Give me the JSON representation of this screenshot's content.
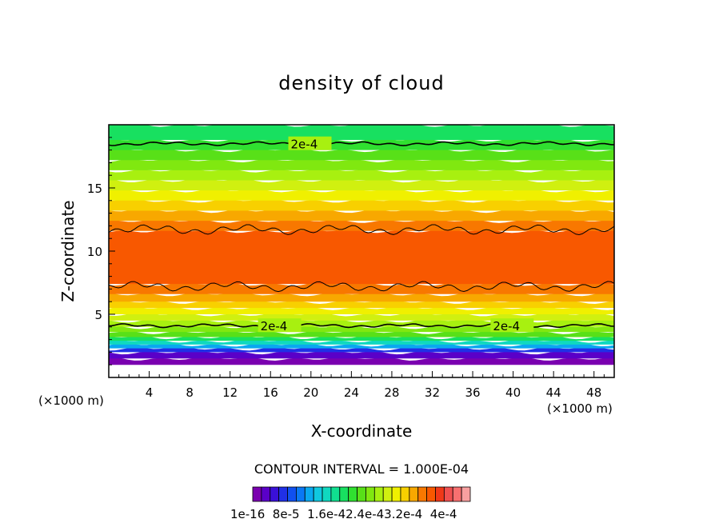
{
  "chart_data": {
    "type": "heatmap",
    "title": "density of cloud",
    "xlabel": "X-coordinate",
    "ylabel": "Z-coordinate",
    "x_unit_left": "(×1000 m)",
    "x_unit_right": "(×1000 m)",
    "xlim": [
      0,
      50
    ],
    "ylim": [
      0,
      20
    ],
    "x_ticks": [
      4,
      8,
      12,
      16,
      20,
      24,
      28,
      32,
      36,
      40,
      44,
      48
    ],
    "y_ticks": [
      5,
      10,
      15
    ],
    "contour_label": "2e-4",
    "contour_interval_text": "CONTOUR INTERVAL = 1.000E-04",
    "colorbar_labels": [
      "1e-16",
      "8e-5",
      "1.6e-4",
      "2.4e-4",
      "3.2e-4",
      "4e-4"
    ],
    "colorbar_label_text": "1e-16  8e-5  1.6e-42.4e-43.2e-4  4e-4",
    "colorbar_colors": [
      "#7a00b0",
      "#5a00c8",
      "#3a10d8",
      "#2030e6",
      "#1050f0",
      "#0a78f5",
      "#0aa8f0",
      "#10c8e0",
      "#10d8c0",
      "#10e090",
      "#18e060",
      "#30e030",
      "#58e018",
      "#80e810",
      "#a8f010",
      "#d0f010",
      "#f0f000",
      "#f8d000",
      "#f8a800",
      "#f87800",
      "#f85800",
      "#f03818",
      "#f05050",
      "#f87070",
      "#f8a0a0"
    ],
    "bands": [
      {
        "z0": 0.0,
        "z1": 1.0,
        "level": -1
      },
      {
        "z0": 1.0,
        "z1": 1.5,
        "level": 0
      },
      {
        "z0": 1.5,
        "z1": 2.0,
        "level": 1
      },
      {
        "z0": 2.0,
        "z1": 2.3,
        "level": 3
      },
      {
        "z0": 2.3,
        "z1": 2.6,
        "level": 6
      },
      {
        "z0": 2.6,
        "z1": 2.9,
        "level": 8
      },
      {
        "z0": 2.9,
        "z1": 3.2,
        "level": 10
      },
      {
        "z0": 3.2,
        "z1": 3.6,
        "level": 12
      },
      {
        "z0": 3.6,
        "z1": 4.0,
        "level": 13
      },
      {
        "z0": 4.0,
        "z1": 4.5,
        "level": 14
      },
      {
        "z0": 4.5,
        "z1": 5.0,
        "level": 15
      },
      {
        "z0": 5.0,
        "z1": 5.5,
        "level": 16
      },
      {
        "z0": 5.5,
        "z1": 6.0,
        "level": 17
      },
      {
        "z0": 6.0,
        "z1": 6.6,
        "level": 18
      },
      {
        "z0": 6.6,
        "z1": 7.4,
        "level": 19
      },
      {
        "z0": 7.4,
        "z1": 11.6,
        "level": 20
      },
      {
        "z0": 11.6,
        "z1": 12.4,
        "level": 19
      },
      {
        "z0": 12.4,
        "z1": 13.2,
        "level": 18
      },
      {
        "z0": 13.2,
        "z1": 14.0,
        "level": 17
      },
      {
        "z0": 14.0,
        "z1": 14.8,
        "level": 16
      },
      {
        "z0": 14.8,
        "z1": 15.6,
        "level": 15
      },
      {
        "z0": 15.6,
        "z1": 16.4,
        "level": 14
      },
      {
        "z0": 16.4,
        "z1": 17.2,
        "level": 13
      },
      {
        "z0": 17.2,
        "z1": 18.0,
        "level": 12
      },
      {
        "z0": 18.0,
        "z1": 18.8,
        "level": 11
      },
      {
        "z0": 18.8,
        "z1": 20.0,
        "level": 10
      }
    ],
    "contours_2e-4": [
      {
        "z": 18.5,
        "label_x": 18
      },
      {
        "z": 11.7
      },
      {
        "z": 7.2
      },
      {
        "z": 4.1,
        "label_x": [
          15,
          38
        ]
      }
    ]
  }
}
